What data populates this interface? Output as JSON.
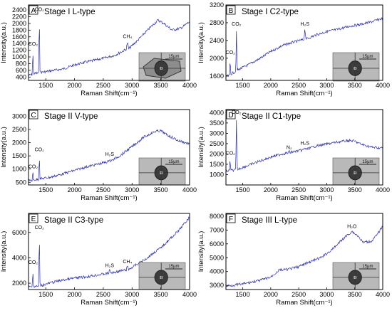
{
  "chart_data": [
    {
      "type": "line",
      "panel_letter": "A",
      "title": "Stage I L-type",
      "xlabel": "Raman Shift(cm⁻¹)",
      "ylabel": "Intensity(a.u.)",
      "xlim": [
        1200,
        4000
      ],
      "ylim": [
        300,
        2550
      ],
      "xticks": [
        1500,
        2000,
        2500,
        3000,
        3500,
        4000
      ],
      "yticks": [
        400,
        600,
        800,
        1000,
        1200,
        1400,
        1600,
        1800,
        2000,
        2200,
        2400
      ],
      "series_color": "#2b2fa8",
      "series": [
        {
          "x": [
            1200,
            1265,
            1275,
            1285,
            1375,
            1388,
            1400,
            1500,
            1800,
            2000,
            2150,
            2300,
            2500,
            2700,
            2900,
            2920,
            2940,
            3100,
            3300,
            3450,
            3550,
            3700,
            3850,
            4000
          ],
          "values": [
            450,
            470,
            1260,
            500,
            520,
            2260,
            540,
            560,
            640,
            760,
            830,
            880,
            960,
            1050,
            1230,
            1450,
            1240,
            1500,
            1850,
            2100,
            2000,
            1800,
            1860,
            2050
          ]
        }
      ],
      "annotations": [
        {
          "text": "CO₂",
          "x": 1280,
          "y": 1300
        },
        {
          "text": "CO₂",
          "x": 1388,
          "y": 2330
        },
        {
          "text": "CH₄",
          "x": 2920,
          "y": 1520
        }
      ],
      "inset_scale": "15µm"
    },
    {
      "type": "line",
      "panel_letter": "B",
      "title": "Stage I C2-type",
      "xlabel": "Raman Shift(cm⁻¹)",
      "ylabel": "Intensity(a.u.)",
      "xlim": [
        1200,
        4000
      ],
      "ylim": [
        1500,
        3200
      ],
      "xticks": [
        1500,
        2000,
        2500,
        3000,
        3500,
        4000
      ],
      "yticks": [
        1600,
        2000,
        2400,
        2800,
        3200
      ],
      "series_color": "#2b2fa8",
      "series": [
        {
          "x": [
            1200,
            1265,
            1275,
            1285,
            1375,
            1388,
            1400,
            1600,
            1800,
            2000,
            2200,
            2400,
            2590,
            2610,
            2630,
            2800,
            3000,
            3200,
            3400,
            3600,
            3800,
            4000
          ],
          "values": [
            1580,
            1610,
            2020,
            1640,
            1700,
            2650,
            1730,
            1850,
            1990,
            2150,
            2280,
            2360,
            2420,
            2660,
            2430,
            2520,
            2600,
            2650,
            2720,
            2760,
            2820,
            2900
          ]
        }
      ],
      "annotations": [
        {
          "text": "CO₂",
          "x": 1280,
          "y": 2060
        },
        {
          "text": "CO₂",
          "x": 1388,
          "y": 2700
        },
        {
          "text": "H₂S",
          "x": 2610,
          "y": 2700
        }
      ],
      "inset_scale": "15µm"
    },
    {
      "type": "line",
      "panel_letter": "C",
      "title": "Stage II V-type",
      "xlabel": "Raman Shift(cm⁻¹)",
      "ylabel": "Intensity(a.u.)",
      "xlim": [
        1200,
        4000
      ],
      "ylim": [
        400,
        3250
      ],
      "xticks": [
        1500,
        2000,
        2500,
        3000,
        3500,
        4000
      ],
      "yticks": [
        500,
        1000,
        1500,
        2000,
        2500,
        3000
      ],
      "series_color": "#2b2fa8",
      "series": [
        {
          "x": [
            1200,
            1265,
            1275,
            1285,
            1375,
            1388,
            1400,
            1600,
            1800,
            2000,
            2200,
            2400,
            2590,
            2610,
            2630,
            2800,
            3000,
            3200,
            3400,
            3500,
            3600,
            3800,
            4000
          ],
          "values": [
            560,
            570,
            940,
            590,
            610,
            1550,
            630,
            700,
            820,
            950,
            1080,
            1180,
            1290,
            1400,
            1300,
            1520,
            1850,
            2200,
            2420,
            2450,
            2300,
            2080,
            1950
          ]
        }
      ],
      "annotations": [
        {
          "text": "CO₂",
          "x": 1280,
          "y": 980
        },
        {
          "text": "CO₂",
          "x": 1388,
          "y": 1620
        },
        {
          "text": "H₂S",
          "x": 2610,
          "y": 1450
        }
      ],
      "inset_scale": "15µm"
    },
    {
      "type": "line",
      "panel_letter": "D",
      "title": "Stage II C1-type",
      "xlabel": "Raman Shift(cm⁻¹)",
      "ylabel": "Intensity(a.u.)",
      "xlim": [
        1200,
        4000
      ],
      "ylim": [
        500,
        4150
      ],
      "xticks": [
        1500,
        2000,
        2500,
        3000,
        3500,
        4000
      ],
      "yticks": [
        1000,
        1500,
        2000,
        2500,
        3000,
        3500,
        4000
      ],
      "series_color": "#2b2fa8",
      "series": [
        {
          "x": [
            1200,
            1265,
            1275,
            1285,
            1375,
            1388,
            1400,
            1600,
            1800,
            2000,
            2200,
            2320,
            2330,
            2340,
            2590,
            2610,
            2630,
            2800,
            3000,
            3200,
            3400,
            3500,
            3600,
            3800,
            4000
          ],
          "values": [
            1180,
            1190,
            1850,
            1200,
            1220,
            3800,
            1250,
            1450,
            1650,
            1850,
            2000,
            2060,
            2120,
            2070,
            2200,
            2320,
            2220,
            2380,
            2480,
            2580,
            2650,
            2620,
            2480,
            2330,
            2280
          ]
        }
      ],
      "annotations": [
        {
          "text": "CO₂",
          "x": 1280,
          "y": 1900
        },
        {
          "text": "CO₂",
          "x": 1388,
          "y": 3870
        },
        {
          "text": "N₂",
          "x": 2330,
          "y": 2170
        },
        {
          "text": "H₂S",
          "x": 2610,
          "y": 2380
        }
      ],
      "inset_scale": "15µm"
    },
    {
      "type": "line",
      "panel_letter": "E",
      "title": "Stage II C3-type",
      "xlabel": "Raman Shift(cm⁻¹)",
      "ylabel": "Intensity(a.u.)",
      "xlim": [
        1200,
        4000
      ],
      "ylim": [
        1500,
        7500
      ],
      "xticks": [
        1500,
        2000,
        2500,
        3000,
        3500,
        4000
      ],
      "yticks": [
        2000,
        4000,
        6000
      ],
      "series_color": "#2b2fa8",
      "series": [
        {
          "x": [
            1200,
            1265,
            1275,
            1285,
            1375,
            1388,
            1400,
            1600,
            1800,
            2000,
            2200,
            2400,
            2590,
            2610,
            2630,
            2900,
            2920,
            2940,
            3200,
            3500,
            3800,
            4000
          ],
          "values": [
            1700,
            1710,
            3300,
            1720,
            1760,
            6000,
            1790,
            2050,
            2250,
            2400,
            2500,
            2650,
            2780,
            3050,
            2800,
            3050,
            3350,
            3080,
            3800,
            4800,
            6100,
            7200
          ]
        }
      ],
      "annotations": [
        {
          "text": "CO₂",
          "x": 1280,
          "y": 3400
        },
        {
          "text": "CO₂",
          "x": 1388,
          "y": 6150
        },
        {
          "text": "H₂S",
          "x": 2610,
          "y": 3150
        },
        {
          "text": "CH₄",
          "x": 2920,
          "y": 3450
        }
      ],
      "inset_scale": "15µm"
    },
    {
      "type": "line",
      "panel_letter": "F",
      "title": "Stage III L-type",
      "xlabel": "Raman Shift(cm⁻¹)",
      "ylabel": "Intensity(a.u.)",
      "xlim": [
        1200,
        4000
      ],
      "ylim": [
        2700,
        8200
      ],
      "xticks": [
        1500,
        2000,
        2500,
        3000,
        3500,
        4000
      ],
      "yticks": [
        3000,
        4000,
        5000,
        6000,
        7000,
        8000
      ],
      "series_color": "#2b2fa8",
      "series": [
        {
          "x": [
            1200,
            1500,
            1800,
            2000,
            2150,
            2300,
            2500,
            2700,
            2900,
            3100,
            3300,
            3450,
            3550,
            3650,
            3800,
            3900,
            4000
          ],
          "values": [
            2950,
            3100,
            3350,
            3600,
            4100,
            4150,
            4350,
            4700,
            5000,
            5600,
            6400,
            6900,
            6600,
            6100,
            6200,
            6650,
            7300
          ]
        }
      ],
      "annotations": [
        {
          "text": "H₂O",
          "x": 3450,
          "y": 7050
        }
      ],
      "inset_scale": "15µm"
    }
  ]
}
